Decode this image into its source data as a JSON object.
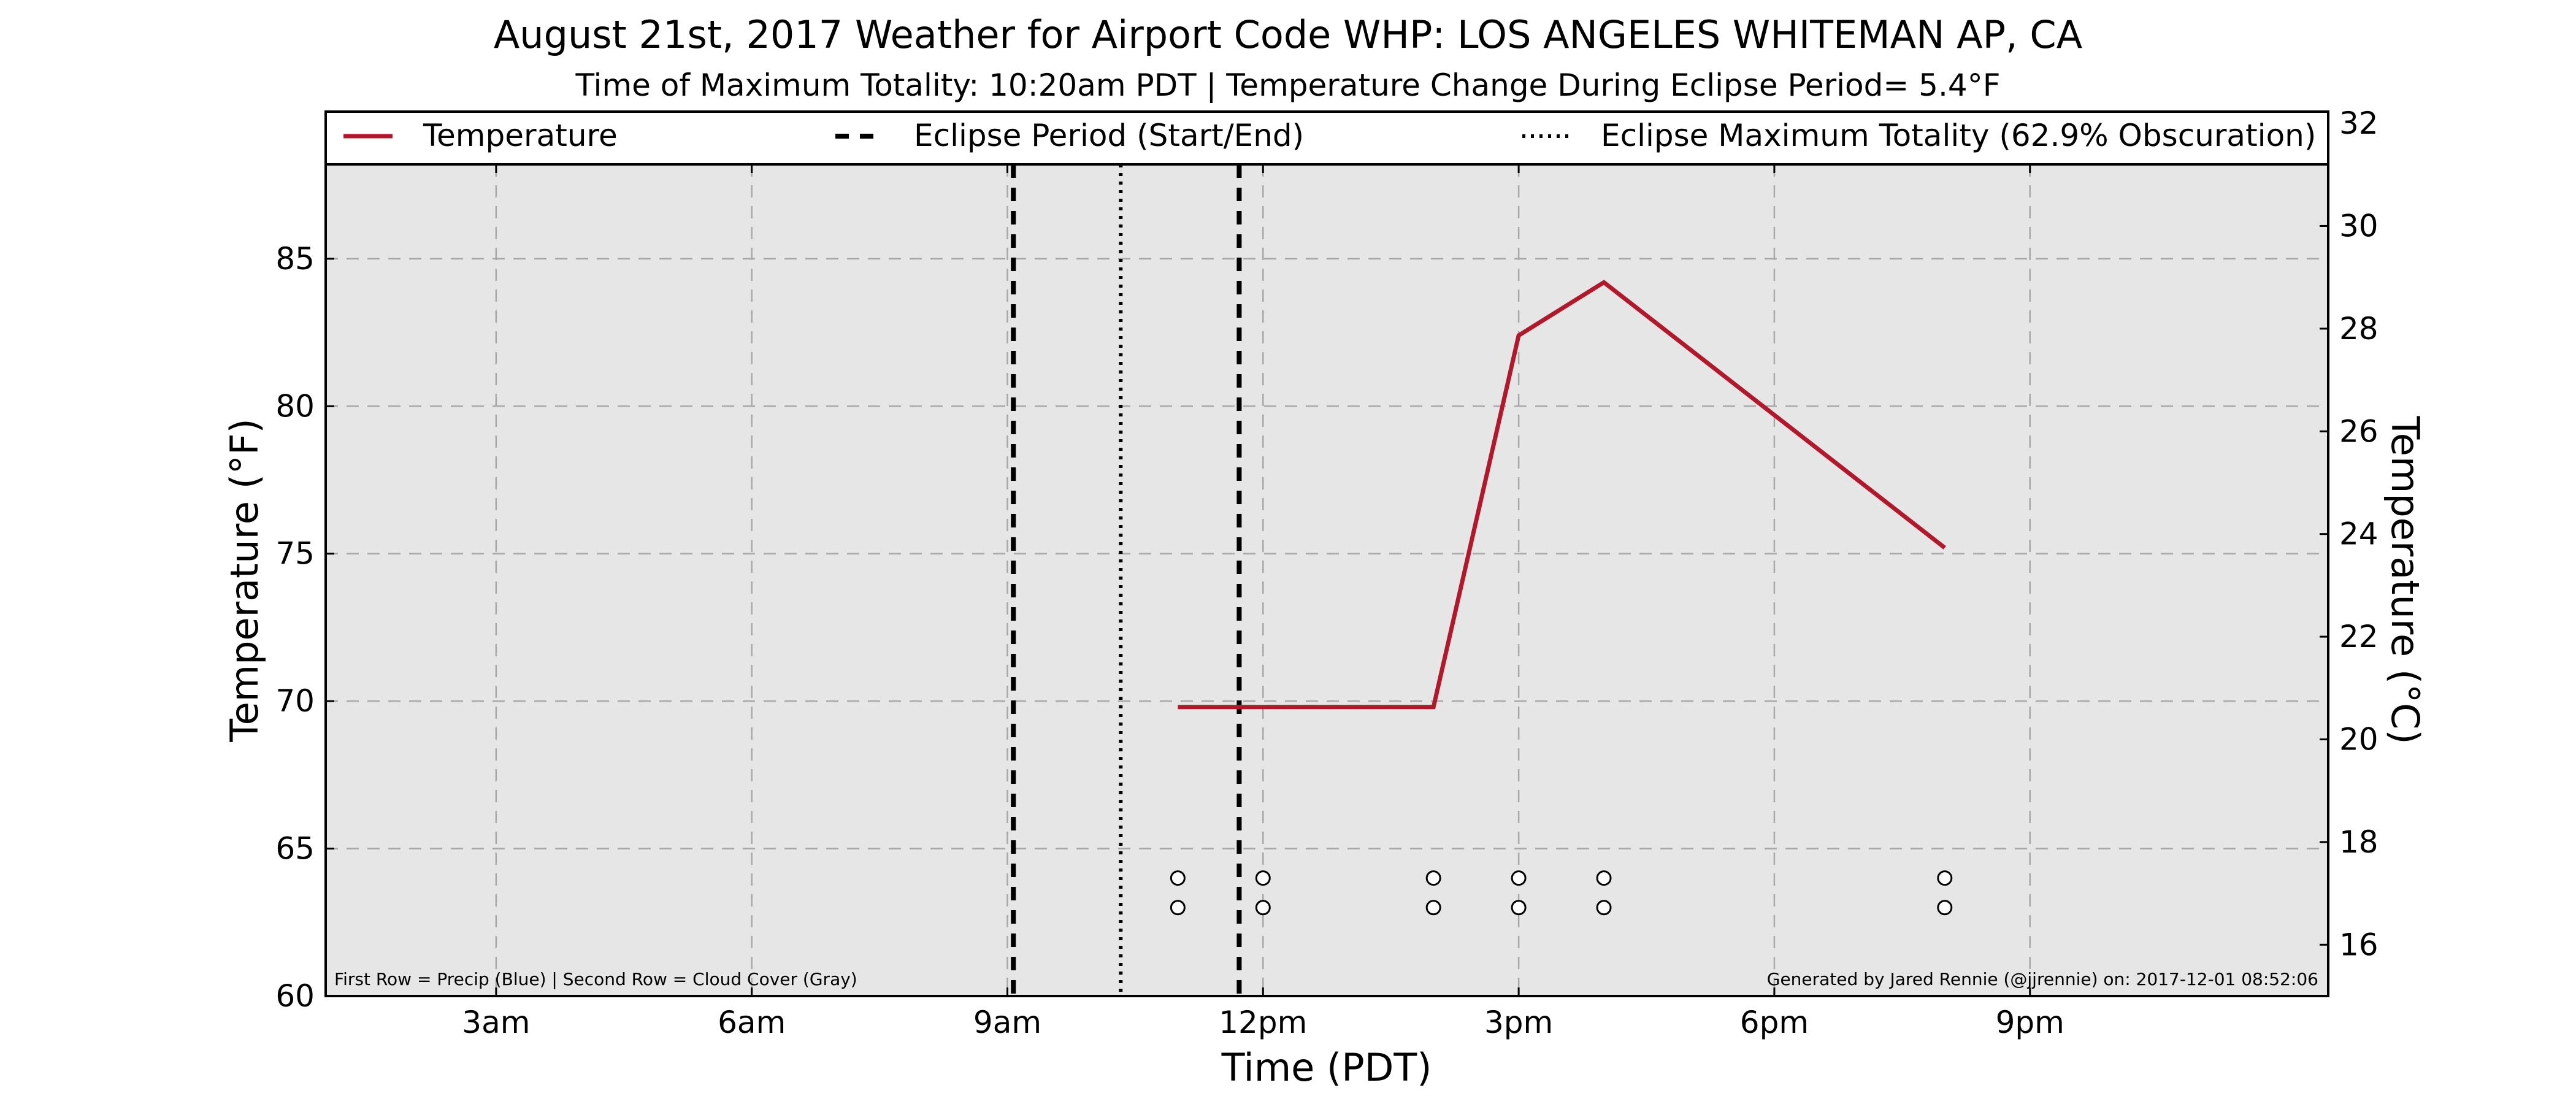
{
  "chart_data": {
    "type": "line",
    "title": "August 21st, 2017 Weather for Airport Code WHP: LOS ANGELES WHITEMAN AP, CA",
    "subtitle": "Time of Maximum Totality: 10:20am PDT | Temperature Change During Eclipse Period= 5.4°F",
    "xlabel": "Time (PDT)",
    "ylabel_left": "Temperature (°F)",
    "ylabel_right": "Temperature (°C)",
    "xlim": [
      1.0,
      24.5
    ],
    "ylim": [
      60,
      88.2
    ],
    "x_ticks": [
      {
        "x": 3,
        "label": "3am"
      },
      {
        "x": 6,
        "label": "6am"
      },
      {
        "x": 9,
        "label": "9am"
      },
      {
        "x": 12,
        "label": "12pm"
      },
      {
        "x": 15,
        "label": "3pm"
      },
      {
        "x": 18,
        "label": "6pm"
      },
      {
        "x": 21,
        "label": "9pm"
      }
    ],
    "y_ticks_left": [
      60,
      65,
      70,
      75,
      80,
      85
    ],
    "y_ticks_right": [
      16,
      18,
      20,
      22,
      24,
      26,
      28,
      30,
      32
    ],
    "ylim_right_celsius": [
      15.0,
      31.2
    ],
    "grid": true,
    "legend_position": "top",
    "series": [
      {
        "name": "Temperature",
        "color": "#b2182b",
        "x": [
          11.0,
          12.0,
          14.0,
          15.0,
          16.0,
          20.0
        ],
        "y": [
          69.8,
          69.8,
          69.8,
          82.4,
          84.2,
          75.2
        ]
      }
    ],
    "eclipse_start": 9.07,
    "eclipse_end": 11.72,
    "eclipse_max": 10.33,
    "legend": {
      "temperature": "Temperature",
      "eclipse_period": "Eclipse Period (Start/End)",
      "eclipse_max": "Eclipse Maximum Totality (62.9% Obscuration)"
    },
    "precip_row": {
      "y": 64,
      "x": [
        11.0,
        12.0,
        14.0,
        15.0,
        16.0,
        20.0
      ],
      "color": "#ffffff"
    },
    "cloud_row": {
      "y": 63,
      "x": [
        11.0,
        12.0,
        14.0,
        15.0,
        16.0,
        20.0
      ],
      "color": "#ffffff"
    },
    "footnote_left": "First Row = Precip (Blue) | Second Row = Cloud Cover (Gray)",
    "footnote_right": "Generated by Jared Rennie (@jjrennie) on: 2017-12-01 08:52:06",
    "plot_background": "#e6e6e6"
  }
}
